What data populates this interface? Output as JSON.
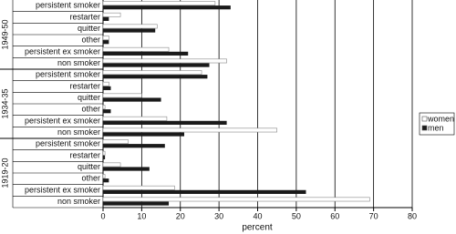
{
  "chart_data": {
    "type": "grouped-hbar",
    "groups": [
      "1949-50",
      "1934-35",
      "1919-20"
    ],
    "categories": [
      "persistent smoker",
      "restarter",
      "quitter",
      "other",
      "persistent ex smoker",
      "non smoker",
      "persistent smoker",
      "restarter",
      "quitter",
      "other",
      "persistent ex smoker",
      "non smoker",
      "persistent smoker",
      "restarter",
      "quitter",
      "other",
      "persistent ex smoker",
      "non smoker"
    ],
    "series": [
      {
        "name": "women",
        "color": "#ffffff",
        "values": [
          29,
          4.5,
          14,
          1.5,
          17,
          32,
          25.5,
          1.5,
          10,
          0.5,
          16.5,
          45,
          6.5,
          0.5,
          4.5,
          0.5,
          18.5,
          69
        ]
      },
      {
        "name": "men",
        "color": "#1a1a1a",
        "values": [
          33,
          1.5,
          13.5,
          1.5,
          22,
          27.5,
          27,
          2,
          15,
          2,
          32,
          21,
          16,
          0.5,
          12,
          1.5,
          52.5,
          17
        ]
      }
    ],
    "xlabel": "percent",
    "xlim": [
      0,
      80
    ],
    "xticks": [
      0,
      10,
      20,
      30,
      40,
      50,
      60,
      70,
      80
    ],
    "grid": true,
    "legend": "right"
  }
}
